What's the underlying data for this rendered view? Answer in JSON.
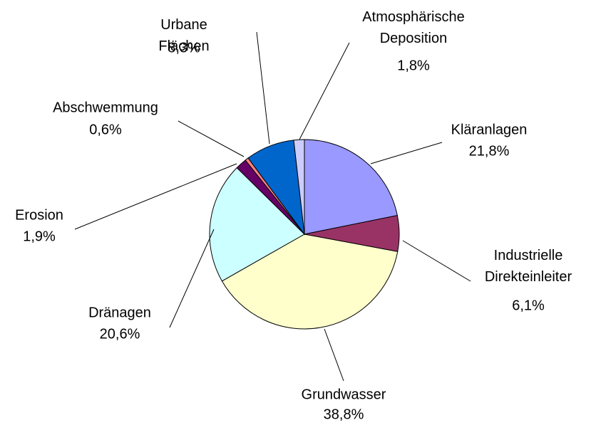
{
  "chart_data": {
    "type": "pie",
    "categories": [
      "Kläranlagen",
      "Industrielle Direkteinleiter",
      "Grundwasser",
      "Dränagen",
      "Erosion",
      "Abschwemmung",
      "Urbane Flächen",
      "Atmosphärische Deposition"
    ],
    "values": [
      21.8,
      6.1,
      38.8,
      20.6,
      1.9,
      0.6,
      8.3,
      1.8
    ],
    "value_labels": [
      "21,8%",
      "6,1%",
      "38,8%",
      "20,6%",
      "1,9%",
      "0,6%",
      "8,3%",
      "1,8%"
    ],
    "colors": [
      "#9999ff",
      "#993366",
      "#ffffcc",
      "#ccffff",
      "#660066",
      "#ff8080",
      "#0066cc",
      "#ccccff"
    ]
  }
}
